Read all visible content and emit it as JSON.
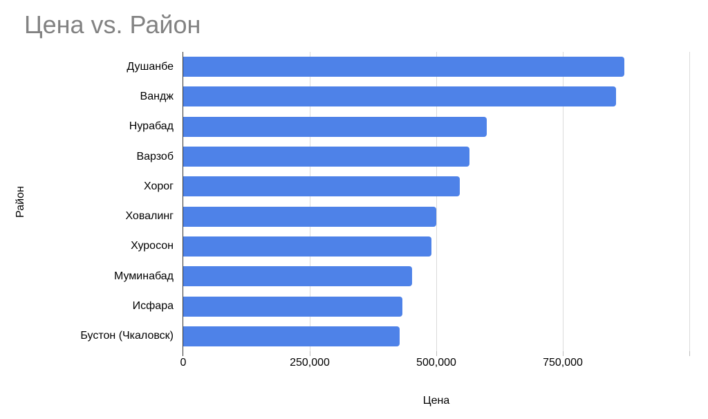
{
  "chart_data": {
    "type": "bar",
    "orientation": "horizontal",
    "title": "Цена vs. Район",
    "xlabel": "Цена",
    "ylabel": "Район",
    "categories": [
      "Душанбе",
      "Вандж",
      "Нурабад",
      "Варзоб",
      "Хорог",
      "Ховалинг",
      "Хуросон",
      "Муминабад",
      "Исфара",
      "Бустон (Чкаловск)"
    ],
    "values": [
      872000,
      855000,
      600000,
      566000,
      547000,
      500000,
      490000,
      452000,
      433000,
      428000
    ],
    "xlim": [
      0,
      1000000
    ],
    "tick_labels": [
      {
        "value": 0,
        "label": "0"
      },
      {
        "value": 250000,
        "label": "250,000"
      },
      {
        "value": 500000,
        "label": "500,000"
      },
      {
        "value": 750000,
        "label": "750,000"
      }
    ],
    "gridline_values": [
      250000,
      500000,
      750000,
      1000000
    ],
    "grid": true,
    "legend": "none",
    "colors": {
      "bar": "#4e82e8",
      "title": "#828282",
      "axis_text": "#000000",
      "gridline": "#dadada",
      "axis_line": "#333333"
    }
  }
}
